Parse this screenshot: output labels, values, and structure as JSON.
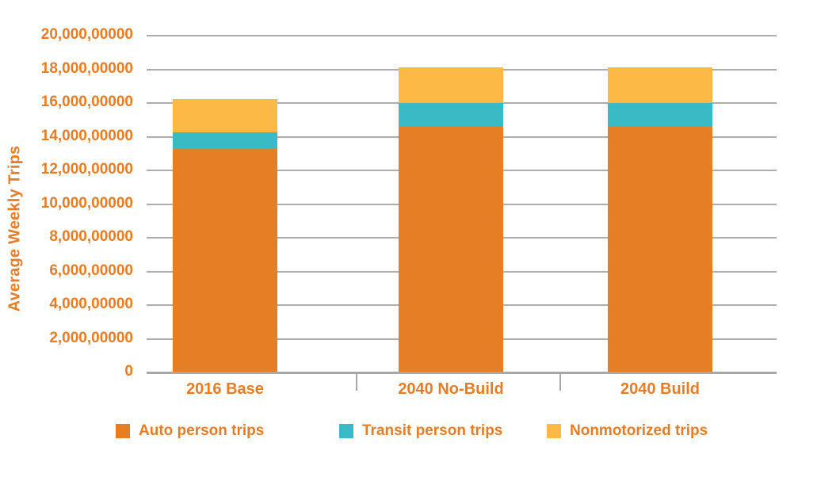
{
  "page": {
    "background": "#ffffff"
  },
  "colors": {
    "label_orange": "#E87C25",
    "gridline_gray": "#ADADAD",
    "axis_gray": "#A6A8AB"
  },
  "chart_data": {
    "type": "bar",
    "stacked": true,
    "title": "",
    "ylabel": "Average Weekly Trips",
    "xlabel": "",
    "categories": [
      "2016 Base",
      "2040 No-Build",
      "2040 Build"
    ],
    "series": [
      {
        "name": "Auto person trips",
        "color": "#E57E25",
        "values": [
          13250000,
          14600000,
          14600000
        ]
      },
      {
        "name": "Transit person trips",
        "color": "#3ABAC5",
        "values": [
          1000000,
          1400000,
          1400000
        ]
      },
      {
        "name": "Nonmotorized trips",
        "color": "#FCB945",
        "values": [
          2000000,
          2100000,
          2100000
        ]
      }
    ],
    "totals": [
      16250000,
      18100000,
      18100000
    ],
    "ylim": [
      0,
      20000000
    ],
    "ytick_values": [
      0,
      2000000,
      4000000,
      6000000,
      8000000,
      10000000,
      12000000,
      14000000,
      16000000,
      18000000,
      20000000
    ],
    "ytick_labels": [
      "0",
      "2,000,00000",
      "4,000,00000",
      "6,000,00000",
      "8,000,00000",
      "10,000,00000",
      "12,000,00000",
      "14,000,00000",
      "16,000,00000",
      "18,000,00000",
      "20,000,00000"
    ],
    "grid": true,
    "legend_position": "bottom"
  }
}
